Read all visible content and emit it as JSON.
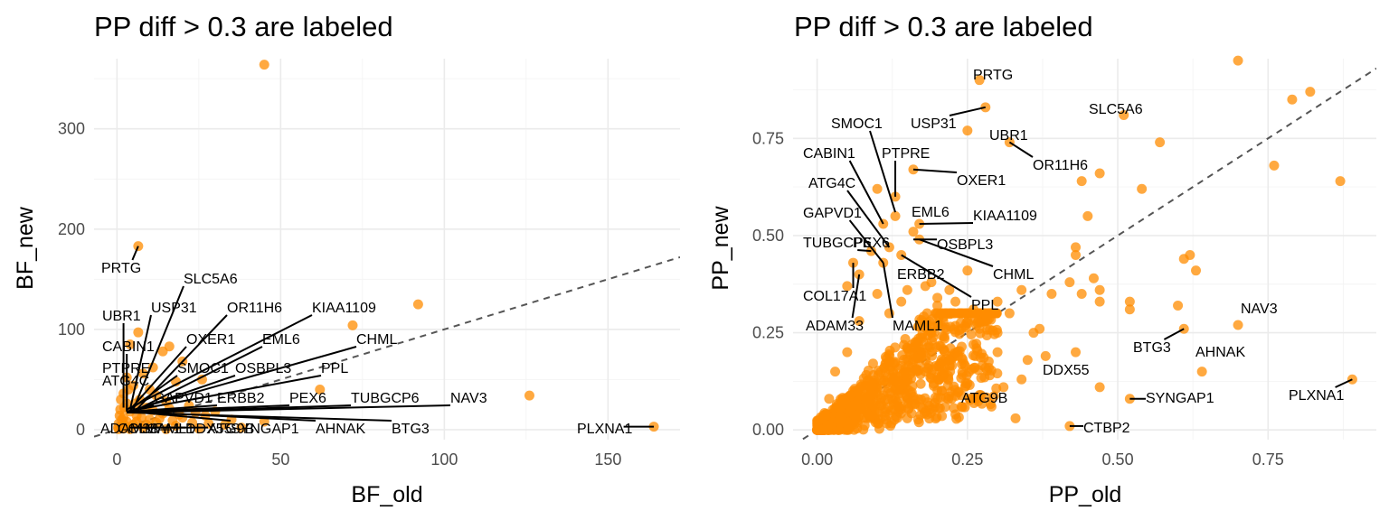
{
  "colors": {
    "point": "#ff8c00",
    "diagonal": "#555555"
  },
  "chart_data": [
    {
      "type": "scatter",
      "title": "PP diff > 0.3 are labeled",
      "xlabel": "BF_old",
      "ylabel": "BF_new",
      "xlim": [
        -7,
        172
      ],
      "ylim": [
        -10,
        370
      ],
      "xticks": [
        0,
        50,
        100,
        150
      ],
      "yticks": [
        0,
        100,
        200,
        300
      ],
      "diagonal": true,
      "grid": true,
      "points": [
        [
          45,
          364
        ],
        [
          6.5,
          183
        ],
        [
          92,
          125
        ],
        [
          72,
          104
        ],
        [
          126,
          34
        ],
        [
          164,
          3
        ],
        [
          62,
          40
        ],
        [
          6.5,
          97
        ],
        [
          4,
          85
        ],
        [
          16,
          83
        ],
        [
          14,
          78
        ],
        [
          20,
          68
        ],
        [
          11,
          62
        ],
        [
          8,
          56
        ],
        [
          3,
          52
        ],
        [
          26,
          50
        ],
        [
          18,
          48
        ],
        [
          5,
          44
        ],
        [
          10,
          40
        ],
        [
          2,
          36
        ],
        [
          12,
          34
        ],
        [
          7,
          30
        ],
        [
          15,
          28
        ],
        [
          3,
          26
        ],
        [
          22,
          24
        ],
        [
          9,
          22
        ],
        [
          1,
          20
        ],
        [
          4,
          18
        ],
        [
          30,
          18
        ],
        [
          14,
          16
        ],
        [
          6,
          14
        ],
        [
          2,
          12
        ],
        [
          20,
          12
        ],
        [
          10,
          10
        ],
        [
          35,
          10
        ],
        [
          3,
          8
        ],
        [
          12,
          7
        ],
        [
          28,
          6
        ],
        [
          45,
          8
        ],
        [
          5,
          5
        ],
        [
          18,
          4
        ],
        [
          1,
          3
        ],
        [
          8,
          2
        ],
        [
          2,
          1
        ],
        [
          0.5,
          0.5
        ],
        [
          4,
          0.5
        ],
        [
          15,
          0.5
        ],
        [
          25,
          1
        ],
        [
          38,
          2
        ],
        [
          0.5,
          6
        ],
        [
          1.5,
          10
        ],
        [
          0.8,
          14
        ],
        [
          2.5,
          4
        ],
        [
          6,
          8
        ],
        [
          9,
          5
        ],
        [
          13,
          11
        ],
        [
          17,
          9
        ],
        [
          23,
          7
        ],
        [
          27,
          14
        ],
        [
          33,
          5
        ],
        [
          1.2,
          30
        ],
        [
          3.5,
          40
        ],
        [
          0.3,
          2
        ],
        [
          2.2,
          22
        ],
        [
          5.5,
          26
        ],
        [
          7.5,
          12
        ],
        [
          11,
          19
        ],
        [
          16,
          21
        ],
        [
          19,
          15
        ],
        [
          24,
          17
        ]
      ],
      "labels": [
        {
          "text": "PRTG",
          "x": 6.5,
          "y": 183
        },
        {
          "text": "SLC5A6",
          "x": 5,
          "y": 20
        },
        {
          "text": "USP31",
          "x": 4,
          "y": 20
        },
        {
          "text": "OR11H6",
          "x": 6,
          "y": 20
        },
        {
          "text": "KIAA1109",
          "x": 3,
          "y": 20
        },
        {
          "text": "UBR1",
          "x": 2,
          "y": 22
        },
        {
          "text": "CABIN1",
          "x": 3,
          "y": 20
        },
        {
          "text": "OXER1",
          "x": 4,
          "y": 20
        },
        {
          "text": "EML6",
          "x": 5,
          "y": 18
        },
        {
          "text": "CHML",
          "x": 3,
          "y": 18
        },
        {
          "text": "PTPRE",
          "x": 3,
          "y": 20
        },
        {
          "text": "SMOC1",
          "x": 4,
          "y": 20
        },
        {
          "text": "OSBPL3",
          "x": 4,
          "y": 18
        },
        {
          "text": "PPL",
          "x": 3,
          "y": 18
        },
        {
          "text": "ATG4C",
          "x": 3,
          "y": 18
        },
        {
          "text": "GAPVD1",
          "x": 4,
          "y": 18
        },
        {
          "text": "ERBB2",
          "x": 4,
          "y": 18
        },
        {
          "text": "PEX6",
          "x": 4,
          "y": 18
        },
        {
          "text": "TUBGCP6",
          "x": 3,
          "y": 17
        },
        {
          "text": "NAV3",
          "x": 3,
          "y": 17
        },
        {
          "text": "ADAM33",
          "x": 1,
          "y": 2
        },
        {
          "text": "COL17A1",
          "x": 2,
          "y": 2
        },
        {
          "text": "MAML1",
          "x": 4,
          "y": 2
        },
        {
          "text": "DDX55",
          "x": 5,
          "y": 2
        },
        {
          "text": "ATG9B",
          "x": 7,
          "y": 2
        },
        {
          "text": "SYNGAP1",
          "x": 4,
          "y": 18
        },
        {
          "text": "AHNAK",
          "x": 4,
          "y": 18
        },
        {
          "text": "BTG3",
          "x": 4,
          "y": 17
        },
        {
          "text": "PLXNA1",
          "x": 164,
          "y": 3
        }
      ]
    },
    {
      "type": "scatter",
      "title": "PP diff > 0.3 are labeled",
      "xlabel": "PP_old",
      "ylabel": "PP_new",
      "xlim": [
        -0.04,
        0.93
      ],
      "ylim": [
        -0.025,
        0.955
      ],
      "xticks": [
        "0.00",
        "0.25",
        "0.50",
        "0.75"
      ],
      "yticks": [
        "0.00",
        "0.25",
        "0.50",
        "0.75"
      ],
      "diagonal": true,
      "grid": true,
      "points": [
        [
          0.7,
          0.95
        ],
        [
          0.82,
          0.87
        ],
        [
          0.79,
          0.85
        ],
        [
          0.76,
          0.68
        ],
        [
          0.87,
          0.64
        ],
        [
          0.57,
          0.74
        ],
        [
          0.54,
          0.62
        ],
        [
          0.44,
          0.64
        ],
        [
          0.47,
          0.66
        ],
        [
          0.45,
          0.55
        ],
        [
          0.62,
          0.45
        ],
        [
          0.61,
          0.44
        ],
        [
          0.63,
          0.41
        ],
        [
          0.43,
          0.47
        ],
        [
          0.43,
          0.45
        ],
        [
          0.46,
          0.39
        ],
        [
          0.47,
          0.36
        ],
        [
          0.47,
          0.33
        ],
        [
          0.42,
          0.38
        ],
        [
          0.44,
          0.35
        ],
        [
          0.52,
          0.33
        ],
        [
          0.52,
          0.31
        ],
        [
          0.6,
          0.32
        ],
        [
          0.61,
          0.26
        ],
        [
          0.39,
          0.35
        ],
        [
          0.37,
          0.26
        ],
        [
          0.36,
          0.25
        ],
        [
          0.38,
          0.19
        ],
        [
          0.43,
          0.2
        ],
        [
          0.35,
          0.18
        ],
        [
          0.34,
          0.13
        ],
        [
          0.47,
          0.11
        ],
        [
          0.52,
          0.08
        ],
        [
          0.42,
          0.01
        ],
        [
          0.31,
          0.11
        ],
        [
          0.26,
          0.22
        ],
        [
          0.3,
          0.2
        ],
        [
          0.28,
          0.16
        ],
        [
          0.24,
          0.06
        ],
        [
          0.27,
          0.09
        ],
        [
          0.33,
          0.03
        ],
        [
          0.28,
          0.28
        ],
        [
          0.3,
          0.33
        ],
        [
          0.32,
          0.3
        ],
        [
          0.34,
          0.36
        ],
        [
          0.25,
          0.41
        ],
        [
          0.22,
          0.36
        ],
        [
          0.2,
          0.34
        ],
        [
          0.19,
          0.38
        ],
        [
          0.7,
          0.27
        ],
        [
          0.64,
          0.15
        ],
        [
          0.89,
          0.13
        ],
        [
          0.27,
          0.9
        ],
        [
          0.28,
          0.83
        ],
        [
          0.51,
          0.81
        ],
        [
          0.25,
          0.77
        ],
        [
          0.32,
          0.74
        ],
        [
          0.16,
          0.67
        ],
        [
          0.1,
          0.62
        ],
        [
          0.13,
          0.6
        ],
        [
          0.13,
          0.55
        ],
        [
          0.17,
          0.53
        ],
        [
          0.11,
          0.53
        ],
        [
          0.16,
          0.51
        ],
        [
          0.17,
          0.49
        ],
        [
          0.12,
          0.47
        ],
        [
          0.14,
          0.45
        ],
        [
          0.11,
          0.43
        ],
        [
          0.06,
          0.43
        ],
        [
          0.09,
          0.46
        ],
        [
          0.07,
          0.4
        ],
        [
          0.05,
          0.37
        ],
        [
          0.1,
          0.35
        ],
        [
          0.14,
          0.33
        ],
        [
          0.12,
          0.3
        ],
        [
          0.07,
          0.28
        ],
        [
          0.2,
          0.32
        ],
        [
          0.15,
          0.36
        ],
        [
          0.18,
          0.37
        ],
        [
          0.23,
          0.33
        ],
        [
          0.21,
          0.29
        ],
        [
          0.26,
          0.31
        ],
        [
          0.19,
          0.25
        ],
        [
          0.24,
          0.26
        ],
        [
          0.3,
          0.25
        ],
        [
          0.22,
          0.18
        ],
        [
          0.18,
          0.15
        ],
        [
          0.25,
          0.12
        ],
        [
          0.2,
          0.08
        ],
        [
          0.29,
          0.06
        ],
        [
          0.23,
          0.04
        ],
        [
          0.15,
          0.03
        ],
        [
          0.03,
          0.15
        ],
        [
          0.05,
          0.2
        ],
        [
          0.02,
          0.08
        ]
      ],
      "cloud": {
        "n": 900,
        "x_max": 0.3,
        "y_max": 0.3,
        "note": "dense point mass near origin"
      },
      "labels": [
        {
          "text": "PRTG",
          "x": 0.27,
          "y": 0.9
        },
        {
          "text": "SLC5A6",
          "x": 0.51,
          "y": 0.81
        },
        {
          "text": "SMOC1",
          "x": 0.13,
          "y": 0.56
        },
        {
          "text": "USP31",
          "x": 0.28,
          "y": 0.83
        },
        {
          "text": "UBR1",
          "x": 0.32,
          "y": 0.74
        },
        {
          "text": "CABIN1",
          "x": 0.11,
          "y": 0.53
        },
        {
          "text": "PTPRE",
          "x": 0.13,
          "y": 0.6
        },
        {
          "text": "OR11H6",
          "x": 0.32,
          "y": 0.74
        },
        {
          "text": "OXER1",
          "x": 0.16,
          "y": 0.67
        },
        {
          "text": "ATG4C",
          "x": 0.12,
          "y": 0.47
        },
        {
          "text": "EML6",
          "x": 0.17,
          "y": 0.53
        },
        {
          "text": "KIAA1109",
          "x": 0.17,
          "y": 0.53
        },
        {
          "text": "GAPVD1",
          "x": 0.11,
          "y": 0.43
        },
        {
          "text": "TUBGCP6",
          "x": 0.09,
          "y": 0.46
        },
        {
          "text": "PEX6",
          "x": 0.09,
          "y": 0.46
        },
        {
          "text": "OSBPL3",
          "x": 0.16,
          "y": 0.49
        },
        {
          "text": "ERBB2",
          "x": 0.14,
          "y": 0.45
        },
        {
          "text": "CHML",
          "x": 0.17,
          "y": 0.49
        },
        {
          "text": "PPL",
          "x": 0.14,
          "y": 0.45
        },
        {
          "text": "COL17A1",
          "x": 0.06,
          "y": 0.43
        },
        {
          "text": "ADAM33",
          "x": 0.07,
          "y": 0.4
        },
        {
          "text": "MAML1",
          "x": 0.11,
          "y": 0.43
        },
        {
          "text": "NAV3",
          "x": 0.7,
          "y": 0.27
        },
        {
          "text": "BTG3",
          "x": 0.61,
          "y": 0.26
        },
        {
          "text": "AHNAK",
          "x": 0.64,
          "y": 0.15
        },
        {
          "text": "DDX55",
          "x": 0.38,
          "y": 0.19
        },
        {
          "text": "ATG9B",
          "x": 0.27,
          "y": 0.09
        },
        {
          "text": "SYNGAP1",
          "x": 0.52,
          "y": 0.08
        },
        {
          "text": "PLXNA1",
          "x": 0.89,
          "y": 0.13
        },
        {
          "text": "CTBP2",
          "x": 0.42,
          "y": 0.01
        }
      ]
    }
  ]
}
